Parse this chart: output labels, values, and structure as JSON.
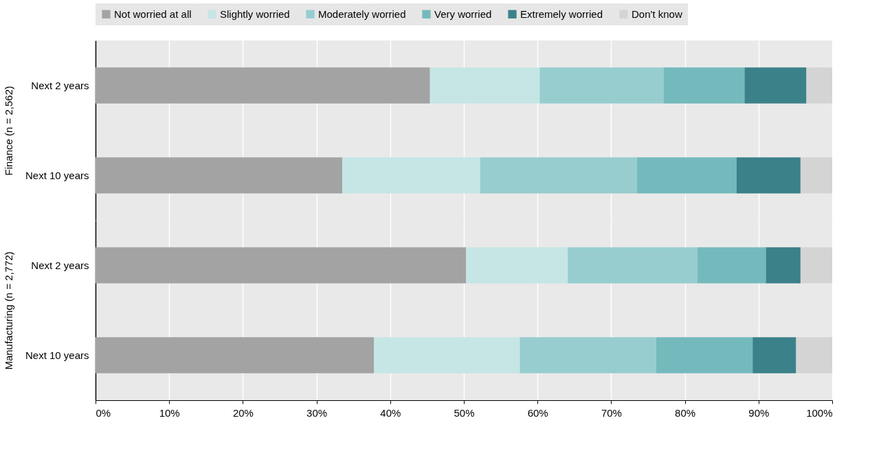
{
  "chart_data": [
    {
      "type": "bar",
      "orientation": "horizontal",
      "stacked": true,
      "ylabel": "Finance (n = 2,562)",
      "categories": [
        "Next 2 years",
        "Next 10 years"
      ],
      "series": [
        {
          "name": "Not worried at all",
          "color": "#a3a3a3",
          "values": [
            45.4,
            33.5
          ]
        },
        {
          "name": "Slightly worried",
          "color": "#c6e5e5",
          "values": [
            14.9,
            18.7
          ]
        },
        {
          "name": "Moderately worried",
          "color": "#98cdd0",
          "values": [
            16.8,
            21.3
          ]
        },
        {
          "name": "Very worried",
          "color": "#74b9bc",
          "values": [
            11.0,
            13.5
          ]
        },
        {
          "name": "Extremely worried",
          "color": "#3b8189",
          "values": [
            8.4,
            8.7
          ]
        },
        {
          "name": "Don't know",
          "color": "#d4d4d4",
          "values": [
            3.5,
            4.3
          ]
        }
      ],
      "xlim": [
        0,
        100
      ],
      "xticks": [
        0,
        10,
        20,
        30,
        40,
        50,
        60,
        70,
        80,
        90,
        100
      ],
      "grid": "x",
      "legend": "top",
      "tick_labels": "y"
    },
    {
      "type": "bar",
      "orientation": "horizontal",
      "stacked": true,
      "ylabel": "Manufacturing (n = 2,772)",
      "categories": [
        "Next 2 years",
        "Next 10 years"
      ],
      "series": [
        {
          "color": "#a3a3a3",
          "values": [
            50.3,
            37.8
          ]
        },
        {
          "color": "#c6e5e5",
          "values": [
            13.8,
            19.8
          ]
        },
        {
          "color": "#98cdd0",
          "values": [
            17.6,
            18.5
          ]
        },
        {
          "color": "#74b9bc",
          "values": [
            9.3,
            13.1
          ]
        },
        {
          "color": "#3b8189",
          "values": [
            4.7,
            5.9
          ]
        },
        {
          "color": "#d4d4d4",
          "values": [
            4.3,
            4.9
          ]
        }
      ],
      "xlim": [
        0,
        100
      ],
      "xticks": [
        {
          "value": 0,
          "label": "0%"
        },
        {
          "value": 10,
          "label": "10%"
        },
        {
          "value": 20,
          "label": "20%"
        },
        {
          "value": 30,
          "label": "30%"
        },
        {
          "value": 40,
          "label": "40%"
        },
        {
          "value": 50,
          "label": "50%"
        },
        {
          "value": 60,
          "label": "60%"
        },
        {
          "value": 70,
          "label": "70%"
        },
        {
          "value": 80,
          "label": "80%"
        },
        {
          "value": 90,
          "label": "90%"
        },
        {
          "value": 100,
          "label": "100%"
        }
      ],
      "grid": "x"
    }
  ]
}
